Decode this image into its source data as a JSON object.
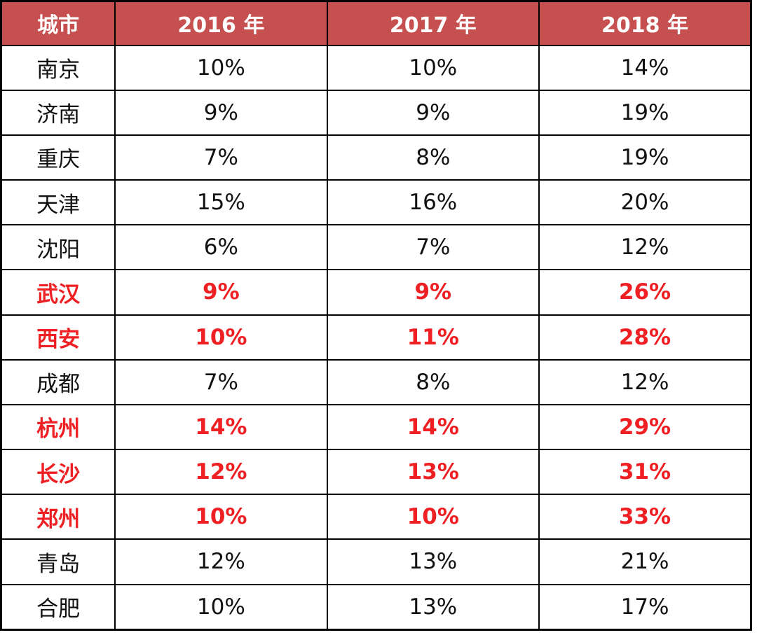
{
  "colors": {
    "header_bg": "#c6504f",
    "header_text": "#ffffff",
    "highlight_text": "#ee2024",
    "normal_text": "#111111",
    "border": "#000000"
  },
  "table": {
    "columns": [
      "城市",
      "2016 年",
      "2017 年",
      "2018 年"
    ],
    "rows": [
      {
        "city": "南京",
        "values": [
          "10%",
          "10%",
          "14%"
        ],
        "highlight": false
      },
      {
        "city": "济南",
        "values": [
          "9%",
          "9%",
          "19%"
        ],
        "highlight": false
      },
      {
        "city": "重庆",
        "values": [
          "7%",
          "8%",
          "19%"
        ],
        "highlight": false
      },
      {
        "city": "天津",
        "values": [
          "15%",
          "16%",
          "20%"
        ],
        "highlight": false
      },
      {
        "city": "沈阳",
        "values": [
          "6%",
          "7%",
          "12%"
        ],
        "highlight": false
      },
      {
        "city": "武汉",
        "values": [
          "9%",
          "9%",
          "26%"
        ],
        "highlight": true
      },
      {
        "city": "西安",
        "values": [
          "10%",
          "11%",
          "28%"
        ],
        "highlight": true
      },
      {
        "city": "成都",
        "values": [
          "7%",
          "8%",
          "12%"
        ],
        "highlight": false
      },
      {
        "city": "杭州",
        "values": [
          "14%",
          "14%",
          "29%"
        ],
        "highlight": true
      },
      {
        "city": "长沙",
        "values": [
          "12%",
          "13%",
          "31%"
        ],
        "highlight": true
      },
      {
        "city": "郑州",
        "values": [
          "10%",
          "10%",
          "33%"
        ],
        "highlight": true
      },
      {
        "city": "青岛",
        "values": [
          "12%",
          "13%",
          "21%"
        ],
        "highlight": false
      },
      {
        "city": "合肥",
        "values": [
          "10%",
          "13%",
          "17%"
        ],
        "highlight": false
      }
    ]
  },
  "chart_data": {
    "type": "table",
    "title": "",
    "columns": [
      "城市",
      "2016 年",
      "2017 年",
      "2018 年"
    ],
    "categories": [
      "南京",
      "济南",
      "重庆",
      "天津",
      "沈阳",
      "武汉",
      "西安",
      "成都",
      "杭州",
      "长沙",
      "郑州",
      "青岛",
      "合肥"
    ],
    "series": [
      {
        "name": "2016 年",
        "values": [
          10,
          9,
          7,
          15,
          6,
          9,
          10,
          7,
          14,
          12,
          10,
          12,
          10
        ]
      },
      {
        "name": "2017 年",
        "values": [
          10,
          9,
          8,
          16,
          7,
          9,
          11,
          8,
          14,
          13,
          10,
          13,
          13
        ]
      },
      {
        "name": "2018 年",
        "values": [
          14,
          19,
          19,
          20,
          12,
          26,
          28,
          12,
          29,
          31,
          33,
          21,
          17
        ]
      }
    ],
    "value_unit": "%",
    "highlighted_categories": [
      "武汉",
      "西安",
      "杭州",
      "长沙",
      "郑州"
    ]
  }
}
